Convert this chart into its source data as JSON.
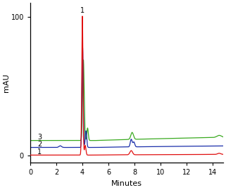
{
  "xlabel": "Minutes",
  "ylabel": "mAU",
  "xlim": [
    0,
    14.8
  ],
  "ylim": [
    -5,
    110
  ],
  "yticks": [
    0,
    100
  ],
  "xticks": [
    0,
    2,
    4,
    6,
    8,
    10,
    12,
    14
  ],
  "colors": {
    "red": "#e01010",
    "green": "#3aaa20",
    "blue": "#1a2eaa"
  },
  "background": "#ffffff",
  "red_base": 0.5,
  "blue_base": 6.0,
  "green_base": 11.0
}
